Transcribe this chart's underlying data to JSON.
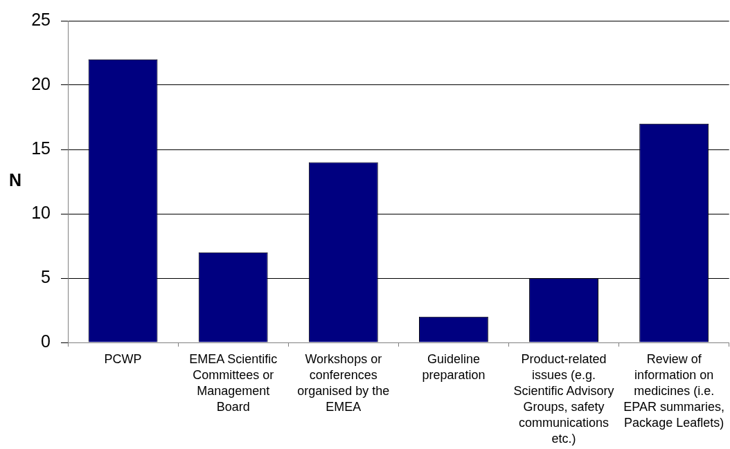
{
  "chart_data": {
    "type": "bar",
    "categories": [
      "PCWP",
      "EMEA Scientific Committees or Management Board",
      "Workshops or conferences organised by the EMEA",
      "Guideline preparation",
      "Product-related issues (e.g. Scientific Advisory Groups, safety communications etc.)",
      "Review of information on medicines (i.e. EPAR summaries, Package Leaflets)"
    ],
    "values": [
      22,
      7,
      14,
      2,
      5,
      17
    ],
    "color": "#000080",
    "ylabel": "N",
    "ylim": [
      0,
      25
    ],
    "yticks": [
      0,
      5,
      10,
      15,
      20,
      25
    ],
    "grid": "y"
  }
}
